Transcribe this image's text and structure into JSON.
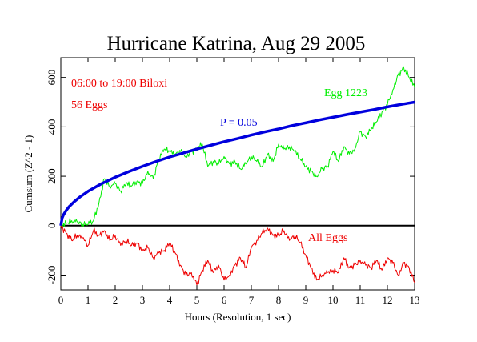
{
  "chart_data": {
    "type": "line",
    "title": "Hurricane Katrina, Aug 29 2005",
    "xlabel": "Hours (Resolution, 1 sec)",
    "ylabel": "Cumsum (Z^2 - 1)",
    "xlim": [
      0,
      13
    ],
    "ylim": [
      -260,
      680
    ],
    "x_ticks": [
      "0",
      "1",
      "2",
      "3",
      "4",
      "5",
      "6",
      "7",
      "8",
      "9",
      "10",
      "11",
      "12",
      "13"
    ],
    "y_ticks": [
      "-200",
      "0",
      "200",
      "400",
      "600"
    ],
    "grid": false,
    "annotations": {
      "time_window": "06:00 to 19:00 Biloxi",
      "egg_count": "56 Eggs"
    },
    "colors": {
      "egg": "#00ee00",
      "probability": "#0000dd",
      "all_eggs": "#ee0000",
      "annotation": "#ee0000",
      "axis": "#000000"
    },
    "series": [
      {
        "name": "Egg 1223",
        "color": "#00ee00",
        "x": [
          0,
          0.2,
          0.4,
          0.6,
          0.8,
          1.0,
          1.2,
          1.4,
          1.6,
          1.8,
          2.0,
          2.2,
          2.4,
          2.6,
          2.8,
          3.0,
          3.2,
          3.4,
          3.6,
          3.8,
          4.0,
          4.2,
          4.4,
          4.6,
          4.8,
          5.0,
          5.2,
          5.4,
          5.6,
          5.8,
          6.0,
          6.2,
          6.4,
          6.6,
          6.8,
          7.0,
          7.2,
          7.4,
          7.6,
          7.8,
          8.0,
          8.2,
          8.4,
          8.6,
          8.8,
          9.0,
          9.2,
          9.4,
          9.6,
          9.8,
          10.0,
          10.2,
          10.4,
          10.6,
          10.8,
          11.0,
          11.2,
          11.4,
          11.6,
          11.8,
          12.0,
          12.2,
          12.4,
          12.6,
          12.8,
          13.0
        ],
        "values": [
          0,
          10,
          20,
          15,
          5,
          5,
          20,
          90,
          190,
          160,
          170,
          140,
          170,
          160,
          180,
          170,
          220,
          190,
          270,
          310,
          300,
          290,
          300,
          280,
          300,
          310,
          330,
          240,
          260,
          250,
          280,
          250,
          260,
          230,
          250,
          280,
          260,
          240,
          290,
          260,
          330,
          310,
          320,
          300,
          270,
          240,
          220,
          200,
          230,
          240,
          300,
          260,
          320,
          290,
          310,
          380,
          360,
          390,
          420,
          460,
          490,
          550,
          610,
          640,
          600,
          560
        ]
      },
      {
        "name": "P = 0.05",
        "color": "#0000dd",
        "x": [
          0,
          0.05,
          0.1,
          0.2,
          0.3,
          0.5,
          0.7,
          1.0,
          1.5,
          2.0,
          2.5,
          3.0,
          3.5,
          4.0,
          4.5,
          5.0,
          5.5,
          6.0,
          6.5,
          7.0,
          7.5,
          8.0,
          8.5,
          9.0,
          9.5,
          10.0,
          10.5,
          11.0,
          11.5,
          12.0,
          12.5,
          13.0
        ],
        "values": [
          0,
          31,
          44,
          62,
          76,
          98,
          116,
          139,
          170,
          196,
          219,
          240,
          260,
          278,
          294,
          310,
          325,
          340,
          353,
          367,
          380,
          392,
          405,
          416,
          428,
          439,
          450,
          460,
          470,
          481,
          491,
          500
        ]
      },
      {
        "name": "All Eggs",
        "color": "#ee0000",
        "x": [
          0,
          0.2,
          0.4,
          0.6,
          0.8,
          1.0,
          1.2,
          1.4,
          1.6,
          1.8,
          2.0,
          2.2,
          2.4,
          2.6,
          2.8,
          3.0,
          3.2,
          3.4,
          3.6,
          3.8,
          4.0,
          4.2,
          4.4,
          4.6,
          4.8,
          5.0,
          5.2,
          5.4,
          5.6,
          5.8,
          6.0,
          6.2,
          6.4,
          6.6,
          6.8,
          7.0,
          7.2,
          7.4,
          7.6,
          7.8,
          8.0,
          8.2,
          8.4,
          8.6,
          8.8,
          9.0,
          9.2,
          9.4,
          9.6,
          9.8,
          10.0,
          10.2,
          10.4,
          10.6,
          10.8,
          11.0,
          11.2,
          11.4,
          11.6,
          11.8,
          12.0,
          12.2,
          12.4,
          12.6,
          12.8,
          13.0
        ],
        "values": [
          0,
          -30,
          -60,
          -40,
          -50,
          -80,
          -20,
          -40,
          -20,
          -60,
          -40,
          -80,
          -60,
          -80,
          -70,
          -100,
          -90,
          -130,
          -110,
          -100,
          -70,
          -110,
          -160,
          -200,
          -190,
          -240,
          -180,
          -140,
          -190,
          -160,
          -220,
          -200,
          -160,
          -130,
          -170,
          -90,
          -60,
          -30,
          -10,
          -40,
          -40,
          -20,
          -60,
          -40,
          -70,
          -120,
          -170,
          -220,
          -200,
          -190,
          -180,
          -190,
          -130,
          -170,
          -160,
          -140,
          -160,
          -170,
          -140,
          -180,
          -130,
          -150,
          -200,
          -150,
          -170,
          -230
        ]
      }
    ]
  }
}
